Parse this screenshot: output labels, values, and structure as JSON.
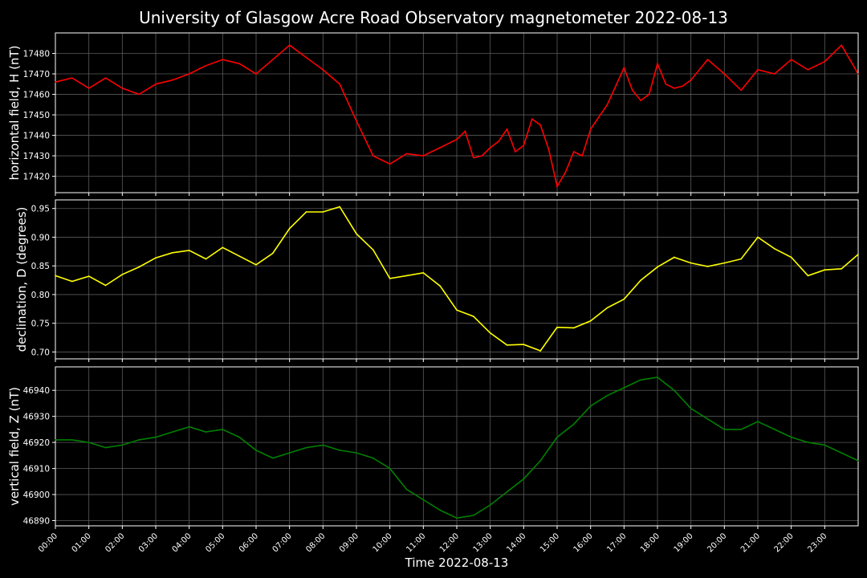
{
  "chart_data": [
    {
      "type": "line",
      "title": "University of Glasgow Acre Road Observatory magnetometer 2022-08-13",
      "ylabel": "horizontal field, H (nT)",
      "color": "#ff0000",
      "ylim": [
        17412,
        17490
      ],
      "yticks": [
        17420,
        17430,
        17440,
        17450,
        17460,
        17470,
        17480
      ],
      "ytick_labels": [
        "17420",
        "17430",
        "17440",
        "17450",
        "17460",
        "17470",
        "17480"
      ],
      "grid": true,
      "x_hours": [
        0,
        0.5,
        1,
        1.5,
        2,
        2.5,
        3,
        3.5,
        4,
        4.5,
        5,
        5.5,
        6,
        6.5,
        7,
        7.5,
        8,
        8.5,
        9,
        9.5,
        10,
        10.5,
        11,
        11.5,
        12,
        12.25,
        12.5,
        12.75,
        13,
        13.25,
        13.5,
        13.75,
        14,
        14.25,
        14.5,
        14.75,
        15,
        15.25,
        15.5,
        15.75,
        16,
        16.5,
        17,
        17.25,
        17.5,
        17.75,
        18,
        18.25,
        18.5,
        18.75,
        19,
        19.5,
        20,
        20.5,
        21,
        21.5,
        22,
        22.5,
        23,
        23.5,
        24
      ],
      "values": [
        17466,
        17468,
        17463,
        17468,
        17463,
        17460,
        17465,
        17467,
        17470,
        17474,
        17477,
        17475,
        17470,
        17477,
        17484,
        17478,
        17472,
        17465,
        17447,
        17430,
        17426,
        17431,
        17430,
        17434,
        17438,
        17442,
        17429,
        17430,
        17434,
        17437,
        17443,
        17432,
        17435,
        17448,
        17445,
        17433,
        17415,
        17422,
        17432,
        17430,
        17443,
        17455,
        17473,
        17462,
        17457,
        17460,
        17475,
        17465,
        17463,
        17464,
        17467,
        17477,
        17470,
        17462,
        17472,
        17470,
        17477,
        17472,
        17476,
        17484,
        17470
      ]
    },
    {
      "type": "line",
      "ylabel": "declination, D (degrees)",
      "color": "#ffff00",
      "ylim": [
        0.688,
        0.965
      ],
      "yticks": [
        0.7,
        0.75,
        0.8,
        0.85,
        0.9,
        0.95
      ],
      "ytick_labels": [
        "0.70",
        "0.75",
        "0.80",
        "0.85",
        "0.90",
        "0.95"
      ],
      "grid": true,
      "x_hours": [
        0,
        0.5,
        1,
        1.5,
        2,
        2.5,
        3,
        3.5,
        4,
        4.5,
        5,
        5.5,
        6,
        6.5,
        7,
        7.5,
        8,
        8.5,
        9,
        9.5,
        10,
        10.5,
        11,
        11.5,
        12,
        12.5,
        13,
        13.5,
        14,
        14.5,
        15,
        15.5,
        16,
        16.5,
        17,
        17.5,
        18,
        18.5,
        19,
        19.5,
        20,
        20.5,
        21,
        21.5,
        22,
        22.5,
        23,
        23.5,
        24
      ],
      "values": [
        0.833,
        0.823,
        0.832,
        0.816,
        0.835,
        0.848,
        0.864,
        0.873,
        0.877,
        0.862,
        0.882,
        0.867,
        0.852,
        0.872,
        0.915,
        0.944,
        0.944,
        0.953,
        0.906,
        0.878,
        0.828,
        0.833,
        0.838,
        0.815,
        0.773,
        0.762,
        0.733,
        0.712,
        0.713,
        0.702,
        0.743,
        0.742,
        0.754,
        0.777,
        0.792,
        0.825,
        0.848,
        0.865,
        0.855,
        0.849,
        0.855,
        0.862,
        0.9,
        0.88,
        0.865,
        0.833,
        0.843,
        0.845,
        0.87
      ]
    },
    {
      "type": "line",
      "ylabel": "vertical field, Z (nT)",
      "color": "#008000",
      "ylim": [
        46888,
        46949
      ],
      "yticks": [
        46890,
        46900,
        46910,
        46920,
        46930,
        46940
      ],
      "ytick_labels": [
        "46890",
        "46900",
        "46910",
        "46920",
        "46930",
        "46940"
      ],
      "grid": true,
      "x_hours": [
        0,
        0.5,
        1,
        1.5,
        2,
        2.5,
        3,
        3.5,
        4,
        4.5,
        5,
        5.5,
        6,
        6.5,
        7,
        7.5,
        8,
        8.5,
        9,
        9.5,
        10,
        10.5,
        11,
        11.5,
        12,
        12.5,
        13,
        13.5,
        14,
        14.5,
        15,
        15.5,
        16,
        16.5,
        17,
        17.5,
        18,
        18.5,
        19,
        19.5,
        20,
        20.5,
        21,
        21.5,
        22,
        22.5,
        23,
        23.5,
        24
      ],
      "values": [
        46921,
        46921,
        46920,
        46918,
        46919,
        46921,
        46922,
        46924,
        46926,
        46924,
        46925,
        46922,
        46917,
        46914,
        46916,
        46918,
        46919,
        46917,
        46916,
        46914,
        46910,
        46902,
        46898,
        46894,
        46891,
        46892,
        46896,
        46901,
        46906,
        46913,
        46922,
        46927,
        46934,
        46938,
        46941,
        46944,
        46945,
        46940,
        46933,
        46929,
        46925,
        46925,
        46928,
        46925,
        46922,
        46920,
        46919,
        46916,
        46913
      ]
    }
  ],
  "x_ticks": [
    "00:00",
    "01:00",
    "02:00",
    "03:00",
    "04:00",
    "05:00",
    "06:00",
    "07:00",
    "08:00",
    "09:00",
    "10:00",
    "11:00",
    "12:00",
    "13:00",
    "14:00",
    "15:00",
    "16:00",
    "17:00",
    "18:00",
    "19:00",
    "20:00",
    "21:00",
    "22:00",
    "23:00"
  ],
  "xlabel": "Time 2022-08-13",
  "xlim_hours": [
    0,
    24
  ]
}
